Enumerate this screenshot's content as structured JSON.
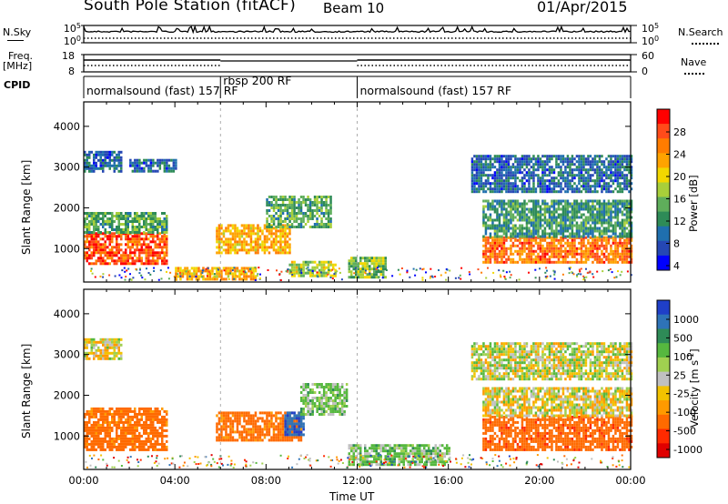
{
  "header": {
    "station": "South Pole Station (fitACF)",
    "beam": "Beam 10",
    "date": "01/Apr/2015"
  },
  "strip": {
    "nsky_label": "N.Sky",
    "nsearch_label": "N.Search",
    "noise_ticks_left": [
      "10^5",
      "10^0"
    ],
    "noise_ticks_right": [
      "10^5",
      "10^0"
    ],
    "freq_label_1": "Freq.",
    "freq_label_2": "[MHz]",
    "nave_label": "Nave",
    "freq_ticks": [
      "18",
      "8"
    ],
    "nave_ticks": [
      "60",
      "0"
    ],
    "cpid_label": "CPID",
    "cpid_segments": [
      {
        "label": "normalsound (fast) 157 RF",
        "start_hour": 0,
        "end_hour": 6
      },
      {
        "label": "rbsp 200 RF",
        "start_hour": 6,
        "end_hour": 12
      },
      {
        "label": "normalsound (fast) 157 RF",
        "start_hour": 12,
        "end_hour": 24
      }
    ]
  },
  "axes": {
    "x_ticks": [
      "00:00",
      "04:00",
      "08:00",
      "12:00",
      "16:00",
      "20:00",
      "00:00"
    ],
    "x_label": "Time UT",
    "y_label": "Slant Range [km]",
    "y_ticks": [
      "1000",
      "2000",
      "3000",
      "4000"
    ]
  },
  "power_colorbar": {
    "label": "Power [dB]",
    "ticks": [
      "28",
      "24",
      "20",
      "16",
      "12",
      "8",
      "4"
    ],
    "colors": [
      "#ff0000",
      "#ff4b1a",
      "#ff7c00",
      "#ffa300",
      "#f2d700",
      "#a8cf3a",
      "#5fae5b",
      "#2e8b57",
      "#1f6fae",
      "#2547b4",
      "#0000ff"
    ]
  },
  "velocity_colorbar": {
    "label": "Velocity [m s^-1]",
    "ticks": [
      "1000",
      "500",
      "100",
      "25",
      "-25",
      "-100",
      "-500",
      "-1000"
    ],
    "colors": [
      "#1f3fc8",
      "#2e73b8",
      "#2e8b57",
      "#56b83f",
      "#a0d050",
      "#c0c0c0",
      "#f2c200",
      "#ff9a00",
      "#ff6a00",
      "#ff2a00",
      "#e00000"
    ]
  },
  "chart_data": [
    {
      "type": "heatmap",
      "title": "Power",
      "xlabel": "Time UT",
      "ylabel": "Slant Range [km]",
      "xlim": [
        0,
        24
      ],
      "ylim": [
        180,
        4600
      ],
      "colorbar": "Power [dB]",
      "clim": [
        0,
        32
      ],
      "regions": [
        {
          "x": [
            0.0,
            3.6
          ],
          "y": [
            650,
            1400
          ],
          "value": 28
        },
        {
          "x": [
            0.0,
            3.6
          ],
          "y": [
            1400,
            1900
          ],
          "value": 12
        },
        {
          "x": [
            0.0,
            1.6
          ],
          "y": [
            2900,
            3400
          ],
          "value": 6
        },
        {
          "x": [
            2.0,
            4.0
          ],
          "y": [
            2900,
            3200
          ],
          "value": 6
        },
        {
          "x": [
            5.8,
            9.0
          ],
          "y": [
            900,
            1600
          ],
          "value": 22
        },
        {
          "x": [
            4.0,
            7.5
          ],
          "y": [
            250,
            550
          ],
          "value": 22
        },
        {
          "x": [
            8.0,
            10.8
          ],
          "y": [
            1500,
            2300
          ],
          "value": 12
        },
        {
          "x": [
            9.0,
            11.0
          ],
          "y": [
            300,
            700
          ],
          "value": 16
        },
        {
          "x": [
            11.6,
            13.2
          ],
          "y": [
            300,
            800
          ],
          "value": 14
        },
        {
          "x": [
            17.5,
            24.0
          ],
          "y": [
            650,
            1300
          ],
          "value": 26
        },
        {
          "x": [
            17.5,
            24.0
          ],
          "y": [
            1300,
            2200
          ],
          "value": 10
        },
        {
          "x": [
            17.0,
            24.0
          ],
          "y": [
            2400,
            3300
          ],
          "value": 6
        }
      ]
    },
    {
      "type": "heatmap",
      "title": "Velocity",
      "xlabel": "Time UT",
      "ylabel": "Slant Range [km]",
      "xlim": [
        0,
        24
      ],
      "ylim": [
        180,
        4600
      ],
      "colorbar": "Velocity [m s^-1]",
      "regions": [
        {
          "x": [
            0.0,
            3.6
          ],
          "y": [
            650,
            1700
          ],
          "value": -300
        },
        {
          "x": [
            0.0,
            1.6
          ],
          "y": [
            2900,
            3400
          ],
          "value": -25
        },
        {
          "x": [
            5.8,
            9.5
          ],
          "y": [
            900,
            1600
          ],
          "value": -300
        },
        {
          "x": [
            8.8,
            9.6
          ],
          "y": [
            1000,
            1600
          ],
          "value": 800
        },
        {
          "x": [
            9.5,
            11.5
          ],
          "y": [
            1500,
            2300
          ],
          "value": 100
        },
        {
          "x": [
            11.6,
            16.0
          ],
          "y": [
            300,
            800
          ],
          "value": 100
        },
        {
          "x": [
            17.5,
            24.0
          ],
          "y": [
            650,
            1500
          ],
          "value": -400
        },
        {
          "x": [
            17.5,
            24.0
          ],
          "y": [
            1500,
            2200
          ],
          "value": -25
        },
        {
          "x": [
            17.0,
            24.0
          ],
          "y": [
            2400,
            3300
          ],
          "value": 10
        }
      ]
    }
  ]
}
